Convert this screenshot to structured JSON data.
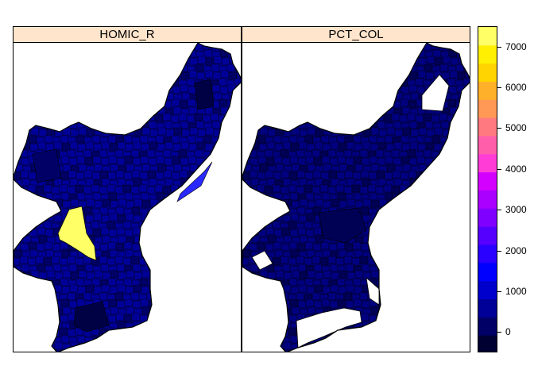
{
  "panels": [
    {
      "title": "HOMIC_R"
    },
    {
      "title": "PCT_COL"
    }
  ],
  "legend": {
    "ticks": [
      {
        "value": 0,
        "label": "0"
      },
      {
        "value": 1000,
        "label": "1000"
      },
      {
        "value": 2000,
        "label": "2000"
      },
      {
        "value": 3000,
        "label": "3000"
      },
      {
        "value": 4000,
        "label": "4000"
      },
      {
        "value": 5000,
        "label": "5000"
      },
      {
        "value": 6000,
        "label": "6000"
      },
      {
        "value": 7000,
        "label": "7000"
      }
    ],
    "range": [
      -500,
      7500
    ],
    "colors": [
      "#000033",
      "#000066",
      "#000099",
      "#0000CC",
      "#0000FF",
      "#2A00FF",
      "#5500FF",
      "#8000FF",
      "#AA00FF",
      "#D400FF",
      "#FF3DD6",
      "#FF5FAA",
      "#FF7A80",
      "#FF9955",
      "#FFB02A",
      "#FFD400",
      "#FFEF00",
      "#FFFF66"
    ]
  },
  "map": {
    "border_color": "#000000",
    "homic_base": "#000099",
    "homic_dark": "#000066",
    "homic_darker": "#000044",
    "homic_high": "#FFFF66",
    "homic_mid": "#2A2AFF",
    "pct_base": "#000080",
    "pct_dark": "#000055",
    "nodata": "#FFFFFF"
  }
}
